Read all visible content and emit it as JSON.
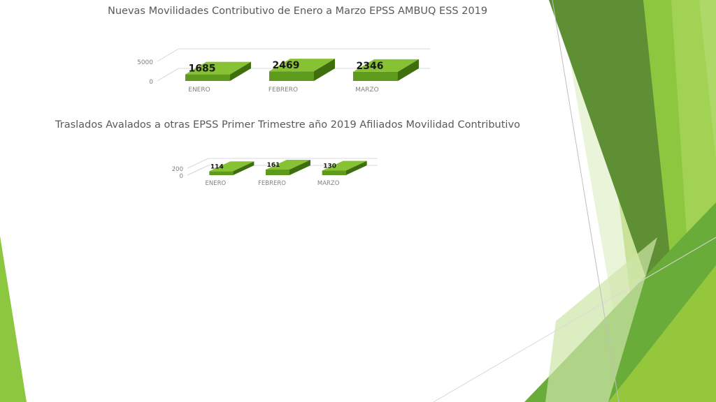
{
  "slide": {
    "colors": {
      "green_dark": "#5a8c32",
      "green_mid": "#72ad3c",
      "green_light": "#9bcb52",
      "green_pale": "#cfe6a8",
      "bar_front": "#5e9a1c",
      "bar_top": "#86c234",
      "bar_side": "#3f6e0e"
    }
  },
  "chart_data": [
    {
      "type": "bar",
      "title": "Nuevas Movilidades Contributivo  de  Enero a Marzo EPSS AMBUQ ESS 2019",
      "categories": [
        "ENERO",
        "FEBRERO",
        "MARZO"
      ],
      "values": [
        1685,
        2469,
        2346
      ],
      "data_labels": [
        "1685",
        "2469",
        "2346"
      ],
      "y_ticks": [
        "0",
        "5000"
      ],
      "ylim": [
        0,
        5000
      ],
      "grid": true,
      "three_d": true
    },
    {
      "type": "bar",
      "title": "Traslados Avalados  a otras EPSS Primer Trimestre  año 2019 Afiliados Movilidad Contributivo",
      "categories": [
        "ENERO",
        "FEBRERO",
        "MARZO"
      ],
      "values": [
        114,
        161,
        130
      ],
      "data_labels": [
        "114",
        "161",
        "130"
      ],
      "y_ticks": [
        "0",
        "200"
      ],
      "ylim": [
        0,
        200
      ],
      "grid": true,
      "three_d": true
    }
  ]
}
